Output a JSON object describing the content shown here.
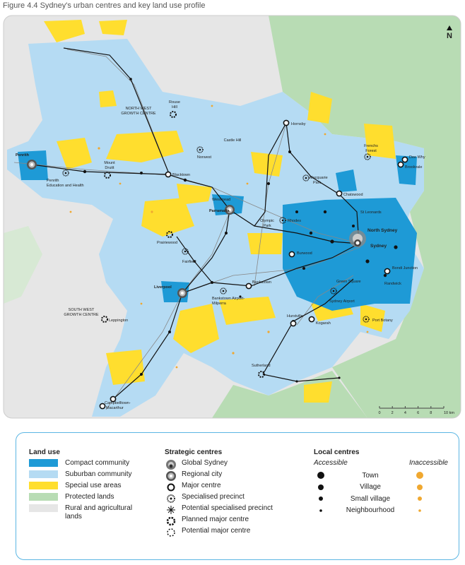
{
  "title": "Figure 4.4 Sydney's urban centres and key land use profile",
  "map": {
    "north": "N",
    "scale": [
      "0",
      "2",
      "4",
      "6",
      "8",
      "10 km"
    ],
    "labels": [
      "Rouse",
      "Hill",
      "NORTH WEST",
      "GROWTH CENTRE",
      "Castle Hill",
      "Norwest",
      "Hornsby",
      "Frenchs",
      "Forest",
      "Dee Why",
      "Brookvale",
      "Penrith",
      "Penrith",
      "Education and Health",
      "Mount",
      "Druitt",
      "Blacktown",
      "Macquarie",
      "Park",
      "Chatswood",
      "Westmead",
      "Parramatta",
      "St Leonards",
      "North Sydney",
      "Olympic",
      "Park",
      "Rhodes",
      "Sydney",
      "Prairiewood",
      "Burwood",
      "Fairfield",
      "Bondi Junction",
      "Green Square",
      "Randwick",
      "Liverpool",
      "Bankstown",
      "Bankstown Airport-",
      "Milperra",
      "Sydney Airport",
      "SOUTH WEST",
      "GROWTH CENTRE",
      "Leppington",
      "Hurstville",
      "Kogarah",
      "Port Botany",
      "Sutherland",
      "Campbelltown-",
      "Macarthur"
    ]
  },
  "legend": {
    "land_use": {
      "title": "Land use",
      "items": [
        {
          "name": "Compact community",
          "color": "#1e9ad6"
        },
        {
          "name": "Suburban community",
          "color": "#b5dbf3"
        },
        {
          "name": "Special use areas",
          "color": "#ffde2e"
        },
        {
          "name": "Protected lands",
          "color": "#b8dcb4"
        },
        {
          "name": "Rural and agricultural lands",
          "color": "#e6e6e6"
        }
      ]
    },
    "strategic_centres": {
      "title": "Strategic centres",
      "items": [
        "Global Sydney",
        "Regional city",
        "Major centre",
        "Specialised precinct",
        "Potential specialised precinct",
        "Planned major centre",
        "Potential major centre"
      ]
    },
    "local_centres": {
      "title": "Local centres",
      "accessible": "Accessible",
      "inaccessible": "Inaccessible",
      "accessible_color": "#111111",
      "inaccessible_color": "#f0a830",
      "items": [
        "Town",
        "Village",
        "Small village",
        "Neighbourhood"
      ]
    }
  }
}
